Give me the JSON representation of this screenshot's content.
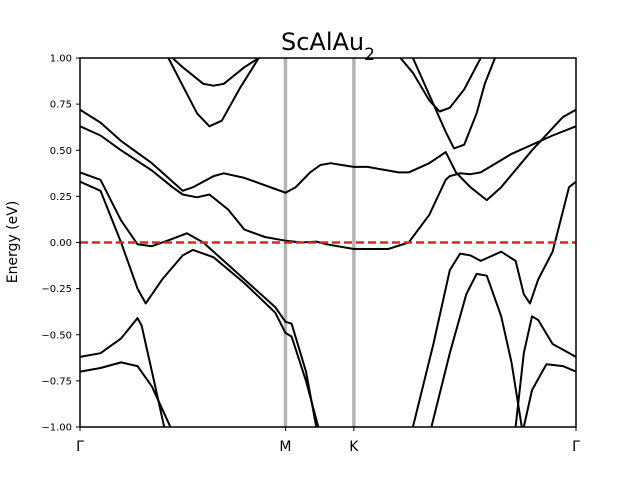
{
  "chart_data": {
    "type": "line",
    "title": "ScAlAu",
    "title_subscript": "2",
    "xlabel": "",
    "ylabel": "Energy (eV)",
    "ylim": [
      -1.0,
      1.0
    ],
    "xlim": [
      0,
      2.414
    ],
    "yticks": [
      -1.0,
      -0.75,
      -0.5,
      -0.25,
      0.0,
      0.25,
      0.5,
      0.75,
      1.0
    ],
    "ytick_labels": [
      "−1.00",
      "−0.75",
      "−0.50",
      "−0.25",
      "0.00",
      "0.25",
      "0.50",
      "0.75",
      "1.00"
    ],
    "kpoints": [
      {
        "label": "Γ",
        "x": 0.0
      },
      {
        "label": "M",
        "x": 1.0
      },
      {
        "label": "K",
        "x": 1.333
      },
      {
        "label": "Γ",
        "x": 2.414
      }
    ],
    "grid": false,
    "fermi_level": {
      "y": 0.0,
      "color": "#e8211d",
      "style": "dashed"
    },
    "band_color": "#000000",
    "kpoint_line_color": "#b4b4b4",
    "series": [
      {
        "values": [
          [
            0.0,
            0.72
          ],
          [
            0.1,
            0.65
          ],
          [
            0.2,
            0.55
          ],
          [
            0.35,
            0.43
          ],
          [
            0.45,
            0.33
          ],
          [
            0.5,
            0.28
          ],
          [
            0.55,
            0.3
          ],
          [
            0.65,
            0.36
          ],
          [
            0.7,
            0.375
          ],
          [
            0.8,
            0.35
          ],
          [
            0.95,
            0.29
          ],
          [
            1.0,
            0.27
          ],
          [
            1.05,
            0.3
          ],
          [
            1.12,
            0.38
          ],
          [
            1.17,
            0.42
          ],
          [
            1.22,
            0.43
          ],
          [
            1.3,
            0.415
          ],
          [
            1.333,
            0.41
          ],
          [
            1.4,
            0.41
          ],
          [
            1.55,
            0.38
          ],
          [
            1.6,
            0.38
          ],
          [
            1.7,
            0.43
          ],
          [
            1.78,
            0.49
          ],
          [
            1.83,
            0.38
          ],
          [
            1.9,
            0.3
          ],
          [
            1.98,
            0.23
          ],
          [
            2.05,
            0.3
          ],
          [
            2.2,
            0.5
          ],
          [
            2.35,
            0.68
          ],
          [
            2.414,
            0.72
          ]
        ]
      },
      {
        "values": [
          [
            0.0,
            0.63
          ],
          [
            0.1,
            0.58
          ],
          [
            0.2,
            0.5
          ],
          [
            0.35,
            0.39
          ],
          [
            0.45,
            0.3
          ],
          [
            0.5,
            0.26
          ],
          [
            0.57,
            0.245
          ],
          [
            0.63,
            0.26
          ],
          [
            0.72,
            0.18
          ],
          [
            0.8,
            0.07
          ],
          [
            0.9,
            0.03
          ],
          [
            1.0,
            0.01
          ],
          [
            1.08,
            0.0
          ],
          [
            1.15,
            0.005
          ],
          [
            1.2,
            -0.01
          ],
          [
            1.333,
            -0.035
          ],
          [
            1.5,
            -0.035
          ],
          [
            1.6,
            0.0
          ],
          [
            1.7,
            0.15
          ],
          [
            1.78,
            0.34
          ],
          [
            1.8,
            0.36
          ],
          [
            1.85,
            0.375
          ],
          [
            1.9,
            0.37
          ],
          [
            1.95,
            0.38
          ],
          [
            2.1,
            0.48
          ],
          [
            2.3,
            0.58
          ],
          [
            2.414,
            0.63
          ]
        ]
      },
      {
        "values": [
          [
            0.0,
            0.38
          ],
          [
            0.1,
            0.34
          ],
          [
            0.2,
            0.12
          ],
          [
            0.28,
            -0.01
          ],
          [
            0.35,
            -0.02
          ],
          [
            0.45,
            0.02
          ],
          [
            0.52,
            0.05
          ],
          [
            0.6,
            0.0
          ],
          [
            0.7,
            -0.1
          ],
          [
            0.85,
            -0.25
          ],
          [
            0.95,
            -0.35
          ],
          [
            1.0,
            -0.43
          ],
          [
            1.03,
            -0.44
          ],
          [
            1.1,
            -0.7
          ],
          [
            1.15,
            -1.0
          ]
        ]
      },
      {
        "values": [
          [
            0.0,
            0.33
          ],
          [
            0.1,
            0.28
          ],
          [
            0.2,
            0.0
          ],
          [
            0.28,
            -0.25
          ],
          [
            0.32,
            -0.33
          ],
          [
            0.4,
            -0.2
          ],
          [
            0.5,
            -0.07
          ],
          [
            0.55,
            -0.04
          ],
          [
            0.65,
            -0.08
          ],
          [
            0.8,
            -0.22
          ],
          [
            0.95,
            -0.38
          ],
          [
            1.0,
            -0.49
          ],
          [
            1.03,
            -0.51
          ],
          [
            1.1,
            -0.75
          ],
          [
            1.16,
            -1.0
          ]
        ]
      },
      {
        "values": [
          [
            0.0,
            -0.62
          ],
          [
            0.1,
            -0.6
          ],
          [
            0.2,
            -0.52
          ],
          [
            0.28,
            -0.41
          ],
          [
            0.3,
            -0.45
          ],
          [
            0.36,
            -0.75
          ],
          [
            0.41,
            -1.0
          ]
        ]
      },
      {
        "values": [
          [
            0.0,
            -0.7
          ],
          [
            0.1,
            -0.68
          ],
          [
            0.2,
            -0.65
          ],
          [
            0.28,
            -0.67
          ],
          [
            0.35,
            -0.78
          ],
          [
            0.44,
            -1.0
          ]
        ]
      },
      {
        "values": [
          [
            0.45,
            1.0
          ],
          [
            0.5,
            0.95
          ],
          [
            0.6,
            0.86
          ],
          [
            0.65,
            0.85
          ],
          [
            0.7,
            0.86
          ],
          [
            0.8,
            0.95
          ],
          [
            0.87,
            1.0
          ]
        ]
      },
      {
        "values": [
          [
            0.43,
            1.0
          ],
          [
            0.5,
            0.85
          ],
          [
            0.57,
            0.7
          ],
          [
            0.63,
            0.63
          ],
          [
            0.69,
            0.66
          ],
          [
            0.78,
            0.84
          ],
          [
            0.87,
            1.0
          ]
        ]
      },
      {
        "values": [
          [
            1.56,
            1.0
          ],
          [
            1.62,
            0.92
          ],
          [
            1.7,
            0.77
          ],
          [
            1.75,
            0.71
          ],
          [
            1.8,
            0.73
          ],
          [
            1.87,
            0.83
          ],
          [
            1.95,
            1.0
          ]
        ]
      },
      {
        "values": [
          [
            1.62,
            1.0
          ],
          [
            1.7,
            0.8
          ],
          [
            1.78,
            0.6
          ],
          [
            1.82,
            0.51
          ],
          [
            1.87,
            0.53
          ],
          [
            1.93,
            0.7
          ],
          [
            1.97,
            0.86
          ],
          [
            2.02,
            1.0
          ]
        ]
      },
      {
        "values": [
          [
            1.62,
            -1.0
          ],
          [
            1.72,
            -0.55
          ],
          [
            1.8,
            -0.15
          ],
          [
            1.85,
            -0.06
          ],
          [
            1.9,
            -0.07
          ],
          [
            1.95,
            -0.1
          ],
          [
            2.05,
            -0.05
          ],
          [
            2.12,
            -0.1
          ],
          [
            2.16,
            -0.28
          ],
          [
            2.19,
            -0.33
          ],
          [
            2.23,
            -0.2
          ],
          [
            2.3,
            -0.05
          ],
          [
            2.38,
            0.3
          ],
          [
            2.414,
            0.33
          ]
        ]
      },
      {
        "values": [
          [
            1.71,
            -1.0
          ],
          [
            1.8,
            -0.6
          ],
          [
            1.88,
            -0.28
          ],
          [
            1.93,
            -0.17
          ],
          [
            1.98,
            -0.18
          ],
          [
            2.05,
            -0.4
          ],
          [
            2.1,
            -0.65
          ],
          [
            2.15,
            -1.0
          ]
        ]
      },
      {
        "values": [
          [
            2.12,
            -1.0
          ],
          [
            2.16,
            -0.6
          ],
          [
            2.2,
            -0.4
          ],
          [
            2.23,
            -0.42
          ],
          [
            2.3,
            -0.55
          ],
          [
            2.414,
            -0.62
          ]
        ]
      },
      {
        "values": [
          [
            2.16,
            -1.0
          ],
          [
            2.2,
            -0.8
          ],
          [
            2.27,
            -0.66
          ],
          [
            2.35,
            -0.67
          ],
          [
            2.414,
            -0.7
          ]
        ]
      }
    ]
  }
}
